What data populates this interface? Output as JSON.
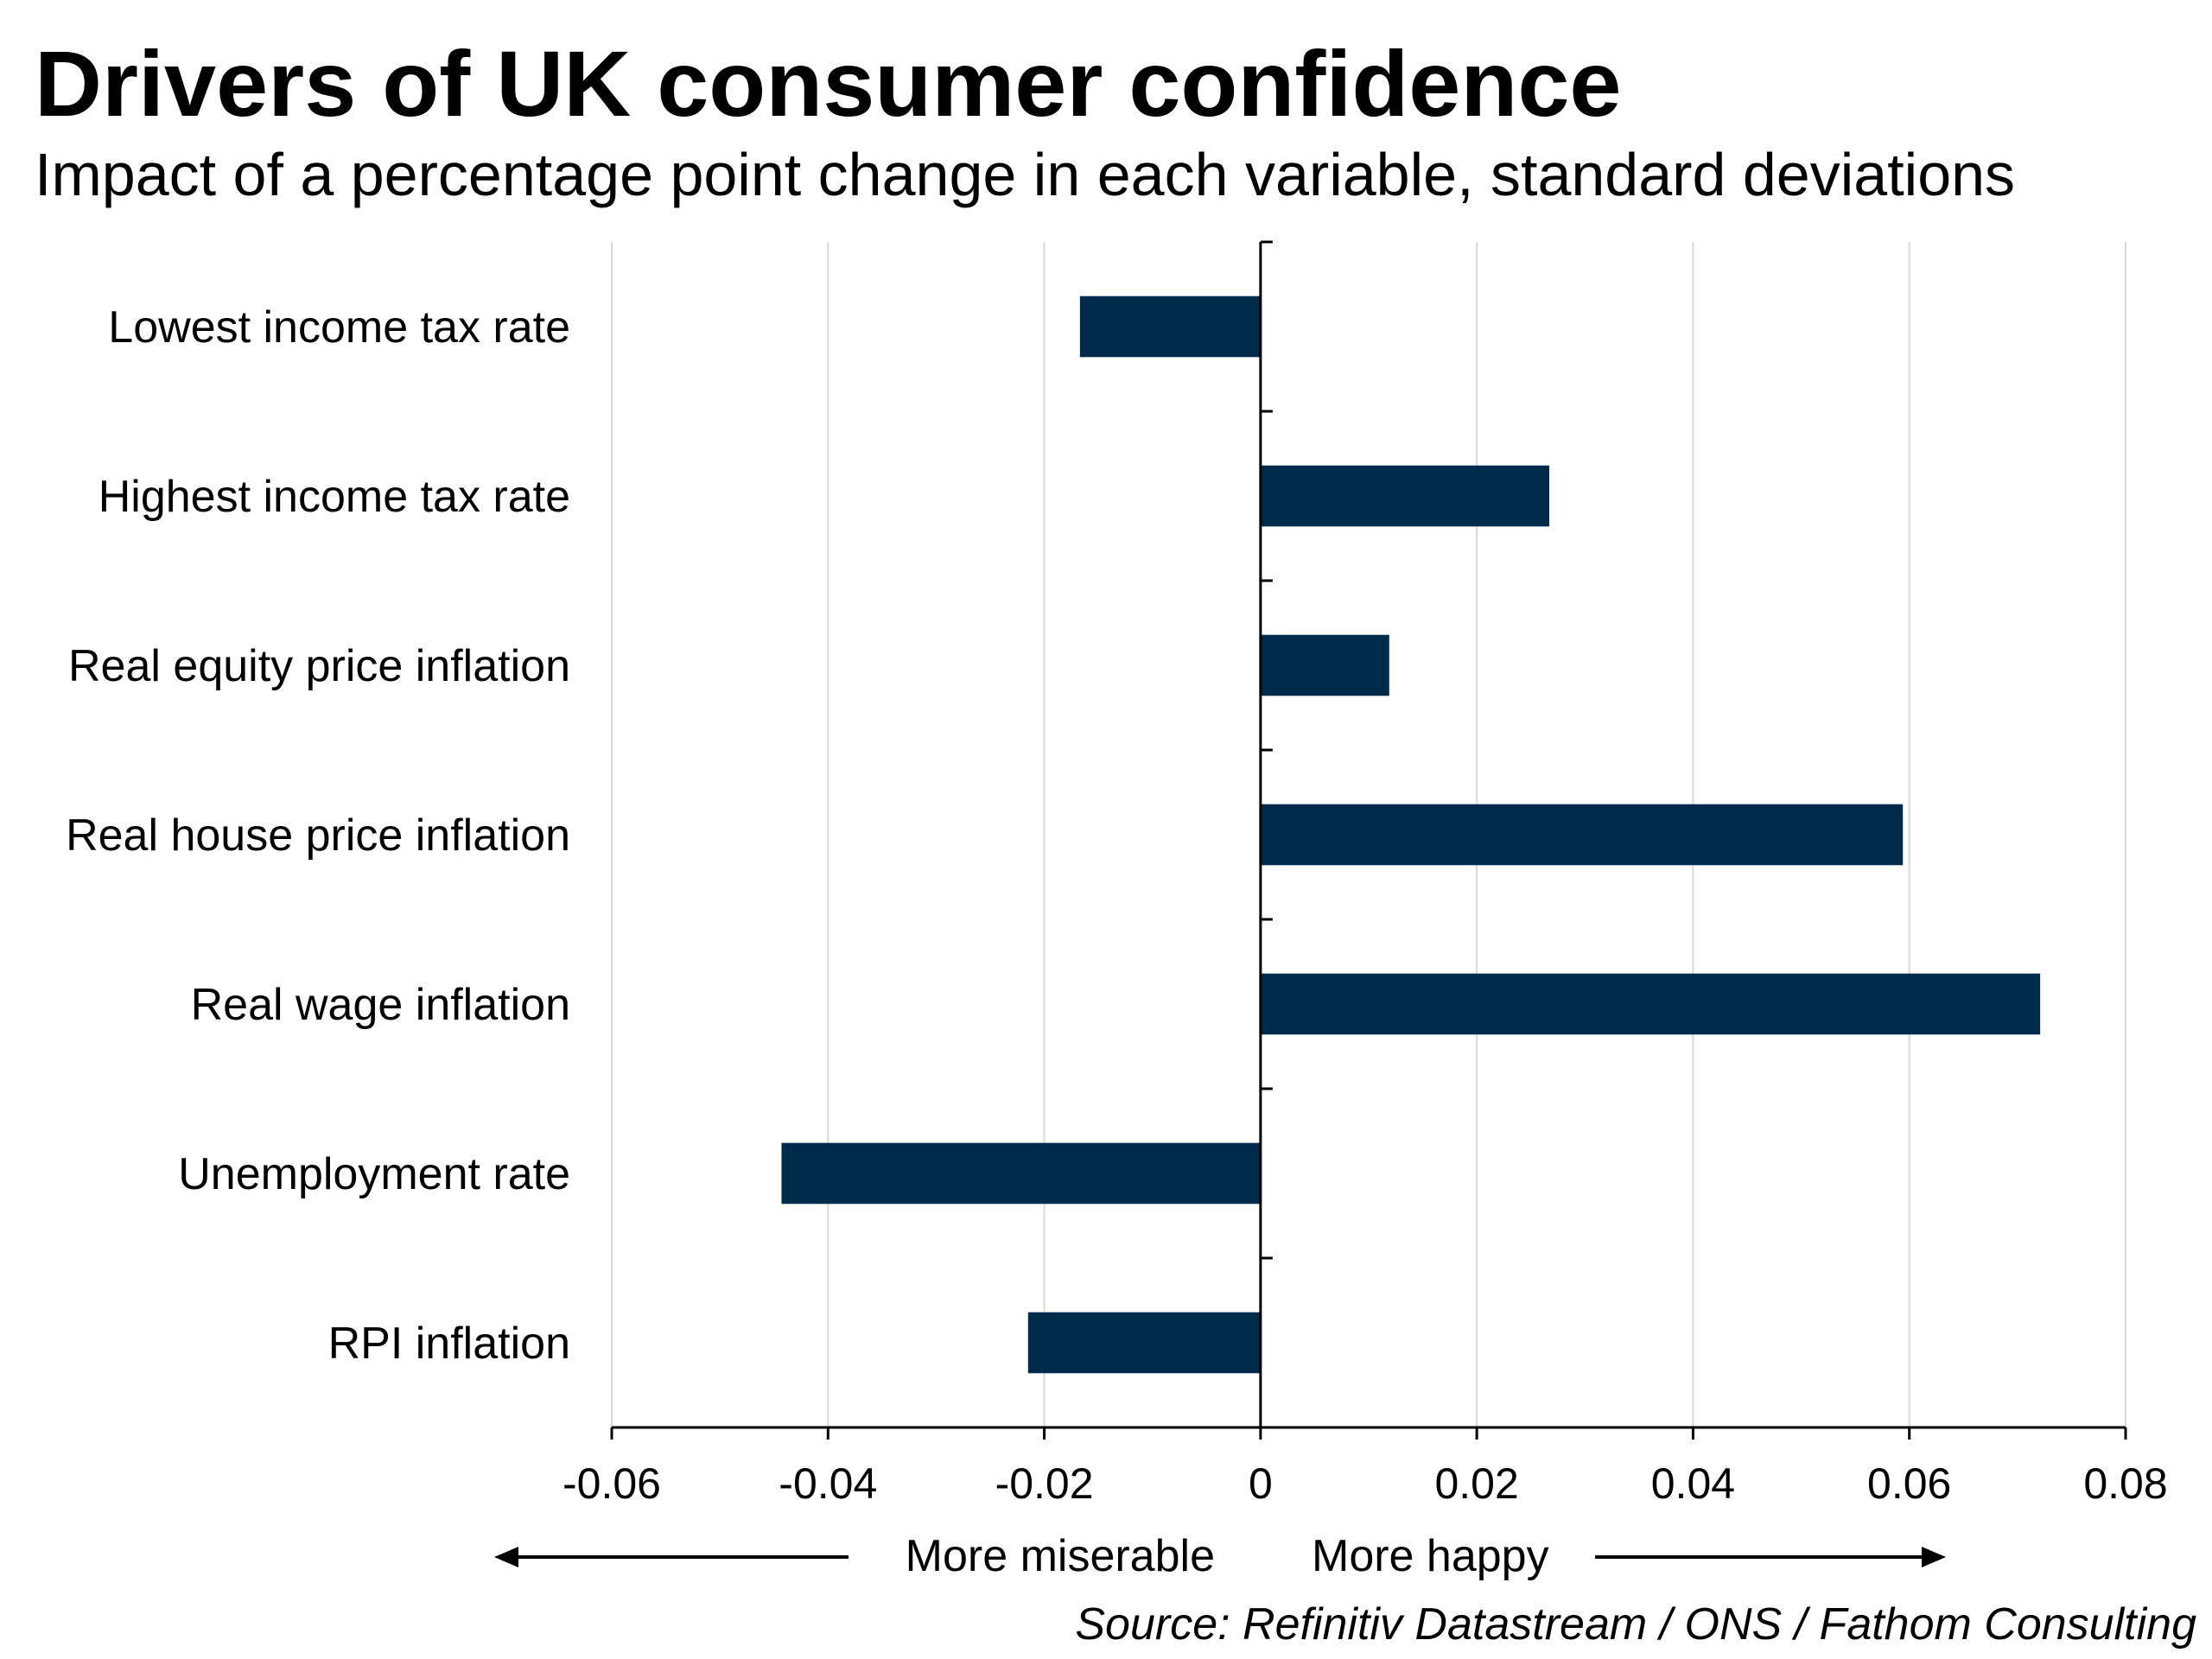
{
  "chart_data": {
    "type": "bar",
    "orientation": "horizontal",
    "title": "Drivers of UK consumer confidence",
    "subtitle": "Impact of a percentage point change in each variable, standard deviations",
    "categories": [
      "Lowest income tax rate",
      "Highest income tax rate",
      "Real equity price inflation",
      "Real house price inflation",
      "Real wage inflation",
      "Unemployment rate",
      "RPI inflation"
    ],
    "values": [
      -0.0167,
      0.0267,
      0.0119,
      0.0594,
      0.0721,
      -0.0443,
      -0.0215
    ],
    "xlim": [
      -0.06,
      0.08
    ],
    "xticks": [
      -0.06,
      -0.04,
      -0.02,
      0,
      0.02,
      0.04,
      0.06,
      0.08
    ],
    "xtick_labels": [
      "-0.06",
      "-0.04",
      "-0.02",
      "0",
      "0.02",
      "0.04",
      "0.06",
      "0.08"
    ],
    "grid": "vertical",
    "bar_color": "#002a4a",
    "grid_color": "#d9d9d9",
    "direction_labels": {
      "negative": "More miserable",
      "positive": "More happy"
    },
    "source": "Source: Refinitiv Datastream / ONS / Fathom Consulting"
  }
}
